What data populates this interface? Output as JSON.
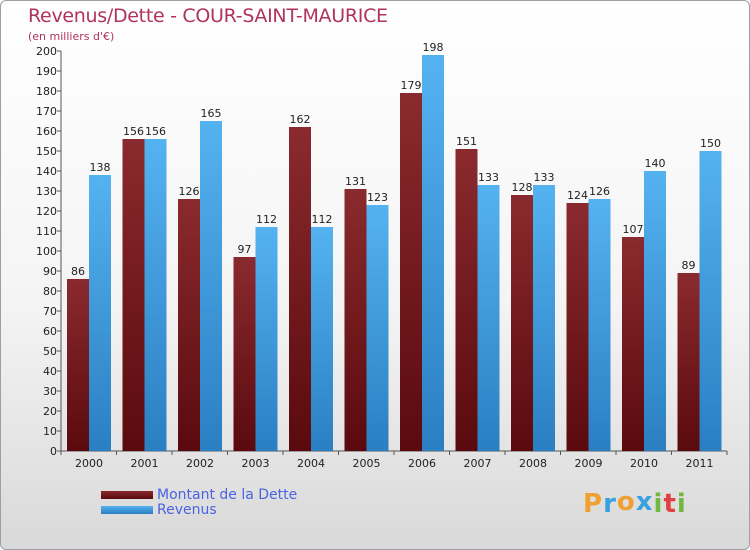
{
  "title": "Revenus/Dette - COUR-SAINT-MAURICE",
  "subtitle": "(en milliers d'€)",
  "colors": {
    "dette": "#7a1c1f",
    "revenus": "#3a99dd",
    "title": "#b0325f",
    "legend_text": "#4a63e0"
  },
  "logo": {
    "letters": [
      "P",
      "r",
      "o",
      "x",
      "i",
      "t",
      "i"
    ],
    "colors": [
      "#f0a030",
      "#3aa0e0",
      "#f0a030",
      "#3aa0e0",
      "#70b840",
      "#e04040",
      "#70b840"
    ]
  },
  "chart_data": {
    "type": "bar",
    "title": "Revenus/Dette - COUR-SAINT-MAURICE",
    "ylabel": "(en milliers d'€)",
    "xlabel": "",
    "categories": [
      "2000",
      "2001",
      "2002",
      "2003",
      "2004",
      "2005",
      "2006",
      "2007",
      "2008",
      "2009",
      "2010",
      "2011"
    ],
    "series": [
      {
        "name": "Montant de la Dette",
        "values": [
          86,
          156,
          126,
          97,
          162,
          131,
          179,
          151,
          128,
          124,
          107,
          89
        ]
      },
      {
        "name": "Revenus",
        "values": [
          138,
          156,
          165,
          112,
          112,
          123,
          198,
          133,
          133,
          126,
          140,
          150
        ]
      }
    ],
    "ylim": [
      0,
      200
    ],
    "ytick_step": 10,
    "legend": "bottom-left",
    "grid": false
  }
}
